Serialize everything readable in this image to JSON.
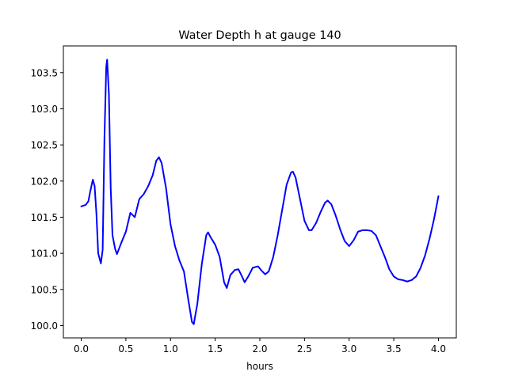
{
  "chart_data": {
    "type": "line",
    "title": "Water Depth h at gauge 140",
    "xlabel": "hours",
    "ylabel": "",
    "xlim": [
      -0.2,
      4.2
    ],
    "ylim": [
      99.83,
      103.87
    ],
    "x_ticks": [
      0.0,
      0.5,
      1.0,
      1.5,
      2.0,
      2.5,
      3.0,
      3.5,
      4.0
    ],
    "x_tick_labels": [
      "0.0",
      "0.5",
      "1.0",
      "1.5",
      "2.0",
      "2.5",
      "3.0",
      "3.5",
      "4.0"
    ],
    "y_ticks": [
      100.0,
      100.5,
      101.0,
      101.5,
      102.0,
      102.5,
      103.0,
      103.5
    ],
    "y_tick_labels": [
      "100.0",
      "100.5",
      "101.0",
      "101.5",
      "102.0",
      "102.5",
      "103.0",
      "103.5"
    ],
    "grid": false,
    "line_color": "#0000ff",
    "series": [
      {
        "name": "",
        "points": [
          [
            0.0,
            101.65
          ],
          [
            0.05,
            101.67
          ],
          [
            0.08,
            101.72
          ],
          [
            0.1,
            101.85
          ],
          [
            0.13,
            102.02
          ],
          [
            0.15,
            101.93
          ],
          [
            0.17,
            101.55
          ],
          [
            0.19,
            101.0
          ],
          [
            0.22,
            100.86
          ],
          [
            0.24,
            101.05
          ],
          [
            0.26,
            102.6
          ],
          [
            0.28,
            103.58
          ],
          [
            0.29,
            103.68
          ],
          [
            0.31,
            103.2
          ],
          [
            0.33,
            101.9
          ],
          [
            0.35,
            101.25
          ],
          [
            0.38,
            101.06
          ],
          [
            0.4,
            100.99
          ],
          [
            0.45,
            101.15
          ],
          [
            0.5,
            101.3
          ],
          [
            0.55,
            101.56
          ],
          [
            0.6,
            101.5
          ],
          [
            0.65,
            101.75
          ],
          [
            0.7,
            101.82
          ],
          [
            0.75,
            101.93
          ],
          [
            0.8,
            102.08
          ],
          [
            0.84,
            102.28
          ],
          [
            0.87,
            102.33
          ],
          [
            0.9,
            102.25
          ],
          [
            0.95,
            101.9
          ],
          [
            1.0,
            101.4
          ],
          [
            1.05,
            101.1
          ],
          [
            1.1,
            100.9
          ],
          [
            1.15,
            100.75
          ],
          [
            1.2,
            100.35
          ],
          [
            1.24,
            100.05
          ],
          [
            1.26,
            100.02
          ],
          [
            1.3,
            100.3
          ],
          [
            1.35,
            100.85
          ],
          [
            1.4,
            101.25
          ],
          [
            1.42,
            101.29
          ],
          [
            1.45,
            101.22
          ],
          [
            1.5,
            101.12
          ],
          [
            1.55,
            100.95
          ],
          [
            1.6,
            100.6
          ],
          [
            1.63,
            100.52
          ],
          [
            1.67,
            100.7
          ],
          [
            1.72,
            100.77
          ],
          [
            1.76,
            100.78
          ],
          [
            1.8,
            100.68
          ],
          [
            1.83,
            100.6
          ],
          [
            1.87,
            100.68
          ],
          [
            1.92,
            100.8
          ],
          [
            1.98,
            100.82
          ],
          [
            2.02,
            100.76
          ],
          [
            2.06,
            100.71
          ],
          [
            2.1,
            100.75
          ],
          [
            2.15,
            100.95
          ],
          [
            2.2,
            101.25
          ],
          [
            2.25,
            101.6
          ],
          [
            2.3,
            101.95
          ],
          [
            2.35,
            102.12
          ],
          [
            2.37,
            102.13
          ],
          [
            2.4,
            102.05
          ],
          [
            2.45,
            101.75
          ],
          [
            2.5,
            101.45
          ],
          [
            2.55,
            101.32
          ],
          [
            2.58,
            101.32
          ],
          [
            2.63,
            101.42
          ],
          [
            2.68,
            101.57
          ],
          [
            2.73,
            101.7
          ],
          [
            2.76,
            101.73
          ],
          [
            2.8,
            101.68
          ],
          [
            2.85,
            101.52
          ],
          [
            2.9,
            101.33
          ],
          [
            2.95,
            101.17
          ],
          [
            3.0,
            101.1
          ],
          [
            3.05,
            101.18
          ],
          [
            3.1,
            101.3
          ],
          [
            3.15,
            101.32
          ],
          [
            3.2,
            101.32
          ],
          [
            3.25,
            101.31
          ],
          [
            3.3,
            101.25
          ],
          [
            3.35,
            101.1
          ],
          [
            3.4,
            100.95
          ],
          [
            3.45,
            100.78
          ],
          [
            3.5,
            100.68
          ],
          [
            3.55,
            100.64
          ],
          [
            3.6,
            100.63
          ],
          [
            3.65,
            100.61
          ],
          [
            3.7,
            100.63
          ],
          [
            3.75,
            100.68
          ],
          [
            3.8,
            100.8
          ],
          [
            3.85,
            100.97
          ],
          [
            3.9,
            101.2
          ],
          [
            3.95,
            101.47
          ],
          [
            4.0,
            101.79
          ]
        ]
      }
    ]
  }
}
